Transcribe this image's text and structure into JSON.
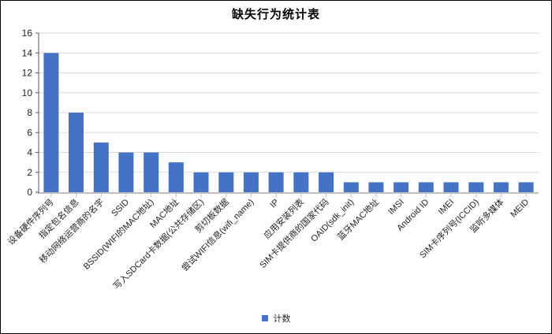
{
  "chart_data": {
    "type": "bar",
    "title": "缺失行为统计表",
    "categories": [
      "设备硬件序列号",
      "指定包名信息",
      "移动网络运营商的名字",
      "SSID",
      "BSSID(WIFI的MAC地址)",
      "MAC地址",
      "写入SDCard卡数据(公共存储区)",
      "剪切板数据",
      "尝试WIFI信息(wifi_name)",
      "IP",
      "应用安装列表",
      "SIM卡提供商的国家代码",
      "OAID(sdk_init)",
      "蓝牙MAC地址",
      "IMSI",
      "Android ID",
      "IMEI",
      "SIM卡序列号(ICCID)",
      "监听多媒体",
      "MEID"
    ],
    "series": [
      {
        "name": "计数",
        "values": [
          14,
          8,
          5,
          4,
          4,
          3,
          2,
          2,
          2,
          2,
          2,
          2,
          1,
          1,
          1,
          1,
          1,
          1,
          1,
          1
        ]
      }
    ],
    "xlabel": "",
    "ylabel": "",
    "ylim": [
      0,
      16
    ],
    "ytick_step": 2,
    "grid": true,
    "legend_position": "bottom",
    "colors": {
      "bar": "#4472C4",
      "gridline": "#D9D9D9",
      "x_axis": "#BFBFBF",
      "y_axis": "#595959",
      "labels": "#1f1f1f"
    }
  }
}
